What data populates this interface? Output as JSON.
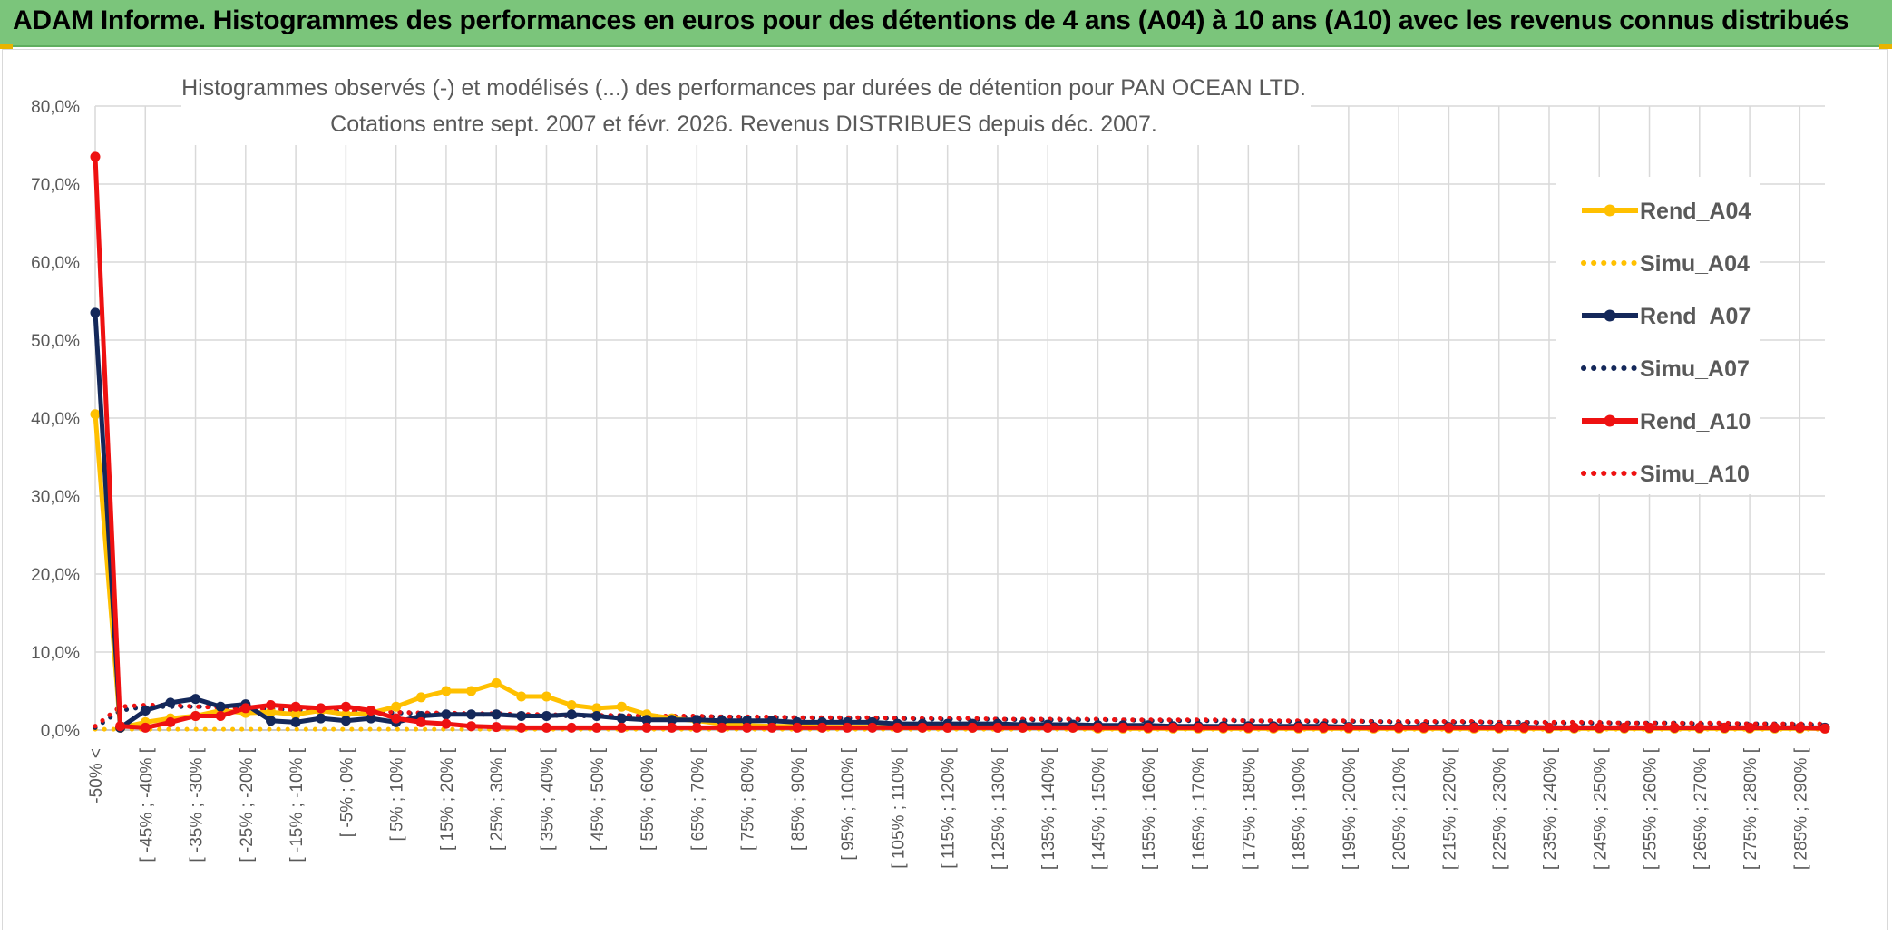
{
  "banner": {
    "title": "ADAM Informe. Histogrammes des performances en euros pour des détentions de 4 ans (A04) à 10 ans (A10) avec les revenus connus distribués",
    "bg_color": "#7bc57b"
  },
  "chart_data": {
    "type": "line",
    "title_line1": "Histogrammes observés (-) et modélisés (...) des performances par durées de détention pour PAN OCEAN LTD.",
    "title_line2": "Cotations entre sept. 2007 et févr. 2026. Revenus DISTRIBUES depuis déc. 2007.",
    "ylim": [
      0,
      80
    ],
    "yticks": [
      "0,0%",
      "10,0%",
      "20,0%",
      "30,0%",
      "40,0%",
      "50,0%",
      "60,0%",
      "70,0%",
      "80,0%"
    ],
    "x_tick_labels": [
      "-50% <",
      "[ -45% ; -40% [",
      "[ -35% ; -30% [",
      "[ -25% ; -20% [",
      "[ -15% ; -10% [",
      "[ -5% ; 0% [",
      "[ 5% ; 10% [",
      "[ 15% ; 20% [",
      "[ 25% ; 30% [",
      "[ 35% ; 40% [",
      "[ 45% ; 50% [",
      "[ 55% ; 60% [",
      "[ 65% ; 70% [",
      "[ 75% ; 80% [",
      "[ 85% ; 90% [",
      "[ 95% ; 100% [",
      "[ 105% ; 110% [",
      "[ 115% ; 120% [",
      "[ 125% ; 130% [",
      "[ 135% ; 140% [",
      "[ 145% ; 150% [",
      "[ 155% ; 160% [",
      "[ 165% ; 170% [",
      "[ 175% ; 180% [",
      "[ 185% ; 190% [",
      "[ 195% ; 200% [",
      "[ 205% ; 210% [",
      "[ 215% ; 220% [",
      "[ 225% ; 230% [",
      "[ 235% ; 240% [",
      "[ 245% ; 250% [",
      "[ 255% ; 260% [",
      "[ 265% ; 270% [",
      "[ 275% ; 280% [",
      "[ 285% ; 290% ["
    ],
    "n_bins": 70,
    "series": [
      {
        "name": "Rend_A04",
        "color": "#ffc000",
        "style": "solid",
        "markers": true,
        "values": [
          40.5,
          0.3,
          1.0,
          1.5,
          1.8,
          2.5,
          2.2,
          2.3,
          2.0,
          2.5,
          2.0,
          2.2,
          3.0,
          4.2,
          5.0,
          5.0,
          6.0,
          4.3,
          4.3,
          3.2,
          2.8,
          3.0,
          2.0,
          1.5,
          1.2,
          0.8,
          0.6,
          0.5,
          0.5,
          0.4,
          0.4,
          0.4,
          0.3,
          0.3,
          0.3,
          0.3,
          0.3,
          0.3,
          0.3,
          0.3,
          0.2,
          0.2,
          0.2,
          0.2,
          0.2,
          0.2,
          0.2,
          0.2,
          0.2,
          0.2,
          0.2,
          0.2,
          0.2,
          0.2,
          0.2,
          0.2,
          0.2,
          0.2,
          0.2,
          0.2,
          0.2,
          0.2,
          0.2,
          0.2,
          0.2,
          0.2,
          0.2,
          0.2,
          0.2,
          0.2
        ]
      },
      {
        "name": "Simu_A04",
        "color": "#ffc000",
        "style": "dotted",
        "markers": false,
        "values": [
          0.1,
          0.1,
          0.1,
          0.1,
          0.1,
          0.1,
          0.1,
          0.1,
          0.1,
          0.1,
          0.1,
          0.1,
          0.1,
          0.1,
          0.1,
          0.1,
          0.1,
          0.1,
          0.1,
          0.1,
          0.1,
          0.1,
          0.1,
          0.1,
          0.1,
          0.1,
          0.1,
          0.1,
          0.1,
          0.1,
          0.1,
          0.1,
          0.1,
          0.1,
          0.1,
          0.1,
          0.1,
          0.1,
          0.1,
          0.1,
          0.1,
          0.1,
          0.1,
          0.1,
          0.1,
          0.1,
          0.1,
          0.1,
          0.1,
          0.1,
          0.1,
          0.1,
          0.1,
          0.1,
          0.1,
          0.1,
          0.1,
          0.1,
          0.1,
          0.1,
          0.1,
          0.1,
          0.1,
          0.1,
          0.1,
          0.1,
          0.1,
          0.1,
          0.1,
          0.1
        ]
      },
      {
        "name": "Rend_A07",
        "color": "#14285a",
        "style": "solid",
        "markers": true,
        "values": [
          53.5,
          0.3,
          2.5,
          3.5,
          4.0,
          3.0,
          3.3,
          1.2,
          1.0,
          1.5,
          1.2,
          1.5,
          1.0,
          1.8,
          2.0,
          2.0,
          2.0,
          1.8,
          1.8,
          2.0,
          1.8,
          1.5,
          1.3,
          1.3,
          1.3,
          1.2,
          1.2,
          1.2,
          1.0,
          1.0,
          1.0,
          1.0,
          0.8,
          0.8,
          0.8,
          0.8,
          0.8,
          0.7,
          0.7,
          0.7,
          0.6,
          0.6,
          0.6,
          0.5,
          0.5,
          0.5,
          0.5,
          0.5,
          0.5,
          0.5,
          0.4,
          0.4,
          0.4,
          0.4,
          0.4,
          0.4,
          0.4,
          0.4,
          0.3,
          0.3,
          0.3,
          0.3,
          0.3,
          0.3,
          0.3,
          0.3,
          0.3,
          0.3,
          0.3,
          0.3
        ]
      },
      {
        "name": "Simu_A07",
        "color": "#14285a",
        "style": "dotted",
        "markers": false,
        "values": [
          0.3,
          2.5,
          3.0,
          3.0,
          3.0,
          3.0,
          2.8,
          2.7,
          2.6,
          2.5,
          2.4,
          2.3,
          2.2,
          2.1,
          2.1,
          2.0,
          2.0,
          1.9,
          1.9,
          1.8,
          1.8,
          1.8,
          1.8,
          1.7,
          1.7,
          1.7,
          1.6,
          1.6,
          1.6,
          1.5,
          1.5,
          1.5,
          1.5,
          1.4,
          1.4,
          1.4,
          1.4,
          1.3,
          1.3,
          1.3,
          1.3,
          1.3,
          1.2,
          1.2,
          1.2,
          1.2,
          1.2,
          1.1,
          1.1,
          1.1,
          1.1,
          1.1,
          1.0,
          1.0,
          1.0,
          1.0,
          1.0,
          1.0,
          0.9,
          0.9,
          0.9,
          0.9,
          0.9,
          0.9,
          0.8,
          0.8,
          0.8,
          0.8,
          0.7,
          0.7
        ]
      },
      {
        "name": "Rend_A10",
        "color": "#ee1111",
        "style": "solid",
        "markers": true,
        "values": [
          73.5,
          0.5,
          0.3,
          1.0,
          1.8,
          1.8,
          2.8,
          3.2,
          3.0,
          2.8,
          3.0,
          2.5,
          1.5,
          1.0,
          0.8,
          0.5,
          0.4,
          0.3,
          0.3,
          0.3,
          0.3,
          0.3,
          0.3,
          0.3,
          0.3,
          0.3,
          0.3,
          0.3,
          0.3,
          0.3,
          0.3,
          0.3,
          0.3,
          0.3,
          0.3,
          0.3,
          0.3,
          0.3,
          0.3,
          0.3,
          0.3,
          0.3,
          0.3,
          0.3,
          0.3,
          0.3,
          0.3,
          0.3,
          0.3,
          0.3,
          0.3,
          0.3,
          0.3,
          0.3,
          0.3,
          0.3,
          0.3,
          0.3,
          0.3,
          0.3,
          0.3,
          0.3,
          0.3,
          0.3,
          0.3,
          0.3,
          0.3,
          0.3,
          0.3,
          0.2
        ]
      },
      {
        "name": "Simu_A10",
        "color": "#ee1111",
        "style": "dotted",
        "markers": false,
        "values": [
          0.5,
          3.0,
          3.2,
          3.2,
          3.0,
          2.9,
          2.8,
          2.7,
          2.6,
          2.5,
          2.4,
          2.4,
          2.3,
          2.2,
          2.2,
          2.1,
          2.1,
          2.0,
          2.0,
          1.9,
          1.9,
          1.9,
          1.8,
          1.8,
          1.8,
          1.7,
          1.7,
          1.7,
          1.6,
          1.6,
          1.6,
          1.6,
          1.5,
          1.5,
          1.5,
          1.5,
          1.4,
          1.4,
          1.4,
          1.4,
          1.4,
          1.3,
          1.3,
          1.3,
          1.3,
          1.3,
          1.2,
          1.2,
          1.2,
          1.2,
          1.2,
          1.1,
          1.1,
          1.1,
          1.1,
          1.1,
          1.0,
          1.0,
          1.0,
          1.0,
          1.0,
          0.9,
          0.9,
          0.9,
          0.9,
          0.9,
          0.8,
          0.8,
          0.8,
          0.8
        ]
      }
    ],
    "legend_position": "right",
    "grid": true
  }
}
